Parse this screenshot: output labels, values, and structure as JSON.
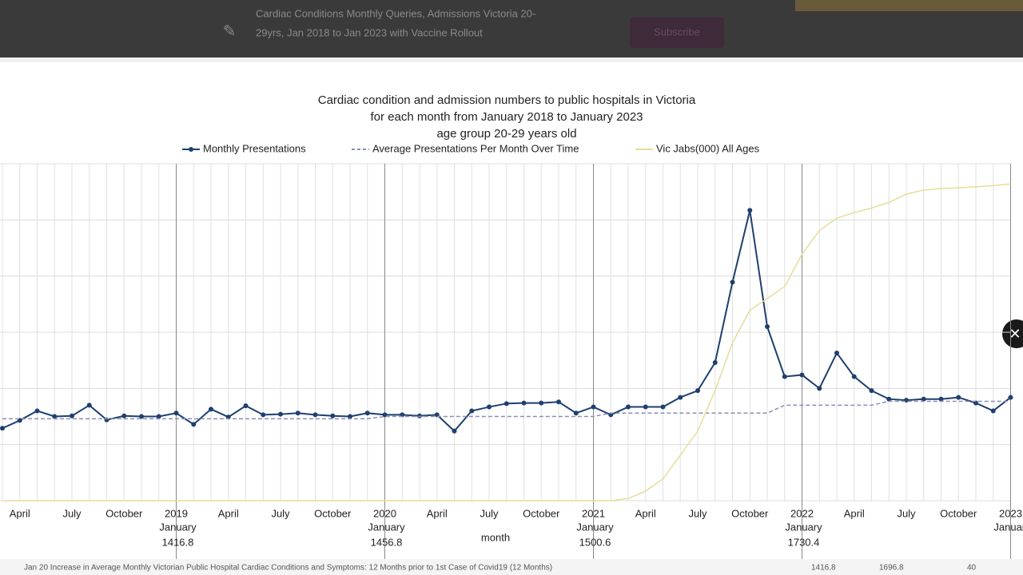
{
  "header": {
    "text_line1": "Cardiac Conditions Monthly Queries, Admissions Victoria 20-",
    "text_line2": "29yrs, Jan 2018 to Jan 2023 with Vaccine Rollout",
    "button": "Subscribe"
  },
  "chart_data": {
    "type": "line",
    "title": [
      "Cardiac condition and admission numbers to public hospitals in Victoria",
      "for each month from January 2018 to January 2023",
      "age group 20-29 years old"
    ],
    "x_label": "month",
    "categories": [
      null,
      "April",
      null,
      null,
      "July",
      null,
      null,
      "October",
      null,
      null,
      "January",
      null,
      null,
      "April",
      null,
      null,
      "July",
      null,
      null,
      "October",
      null,
      null,
      "January",
      null,
      null,
      "April",
      null,
      null,
      "July",
      null,
      null,
      "October",
      null,
      null,
      "January",
      null,
      null,
      "April",
      null,
      null,
      "July",
      null,
      null,
      "October",
      null,
      null,
      "January",
      null,
      null,
      "April",
      null,
      null,
      "July",
      null,
      null,
      "October",
      null,
      null,
      "January"
    ],
    "year_labels": [
      {
        "index": 10,
        "year": "2019",
        "average": "1416.8"
      },
      {
        "index": 22,
        "year": "2020",
        "average": "1456.8"
      },
      {
        "index": 34,
        "year": "2021",
        "average": "1500.6"
      },
      {
        "index": 46,
        "year": "2022",
        "average": "1730.4"
      },
      {
        "index": 58,
        "year": "2023"
      }
    ],
    "ylim": [
      0,
      60
    ],
    "yticks": [
      0,
      10,
      20,
      30,
      40,
      50,
      60
    ],
    "grid": true,
    "series": [
      {
        "name": "Monthly Presentations",
        "color": "#1f3f6e",
        "markers": true,
        "values": [
          12.9,
          14.3,
          16,
          15,
          15.1,
          17,
          14.4,
          15.1,
          15,
          15,
          15.6,
          13.6,
          16.3,
          14.9,
          16.9,
          15.3,
          15.4,
          15.6,
          15.3,
          15.1,
          15,
          15.6,
          15.3,
          15.3,
          15.1,
          15.3,
          12.4,
          16,
          16.7,
          17.3,
          17.4,
          17.4,
          17.6,
          15.6,
          16.7,
          15.3,
          16.7,
          16.7,
          16.7,
          18.4,
          19.6,
          24.6,
          38.9,
          51.7,
          31,
          22.1,
          22.4,
          20,
          26.3,
          22.1,
          19.6,
          18.1,
          17.9,
          18.1,
          18.1,
          18.4,
          17.4,
          16,
          18.4
        ]
      },
      {
        "name": "Average Presentations Per Month Over Time",
        "color": "#8a8fb8",
        "dashed": true,
        "values": [
          14.6,
          14.6,
          14.6,
          14.6,
          14.6,
          14.6,
          14.6,
          14.6,
          14.6,
          14.6,
          14.6,
          14.6,
          14.6,
          14.6,
          14.6,
          14.6,
          14.6,
          14.6,
          14.6,
          14.6,
          14.6,
          14.6,
          15,
          15,
          15,
          15,
          15,
          15,
          15,
          15,
          15,
          15,
          15,
          15,
          15,
          15.6,
          15.6,
          15.6,
          15.6,
          15.6,
          15.6,
          15.6,
          15.6,
          15.6,
          15.6,
          17,
          17,
          17,
          17,
          17,
          17,
          17.7,
          17.7,
          17.7,
          17.7,
          17.7,
          17.7,
          17.7,
          17.7
        ]
      },
      {
        "name": "Vic Jabs(000) All Ages",
        "color": "#e8dc9a",
        "values": [
          0,
          0,
          0,
          0,
          0,
          0,
          0,
          0,
          0,
          0,
          0,
          0,
          0,
          0,
          0,
          0,
          0,
          0,
          0,
          0,
          0,
          0,
          0,
          0,
          0,
          0,
          0,
          0,
          0,
          0,
          0,
          0,
          0,
          0,
          0,
          0,
          0.4,
          1.7,
          3.9,
          8.1,
          12.4,
          19.6,
          28.1,
          33.9,
          36,
          38.1,
          43.9,
          48.1,
          50.3,
          51.3,
          52.1,
          53.1,
          54.6,
          55.3,
          55.6,
          55.7,
          55.9,
          56.1,
          56.4
        ]
      }
    ]
  },
  "footer": {
    "caption": "Jan 20 Increase in Average Monthly Victorian Public Hospital Cardiac Conditions and Symptoms: 12 Months prior to 1st Case of Covid19 (12 Months)",
    "values": [
      "1416.8",
      "1696.8",
      "40"
    ]
  }
}
